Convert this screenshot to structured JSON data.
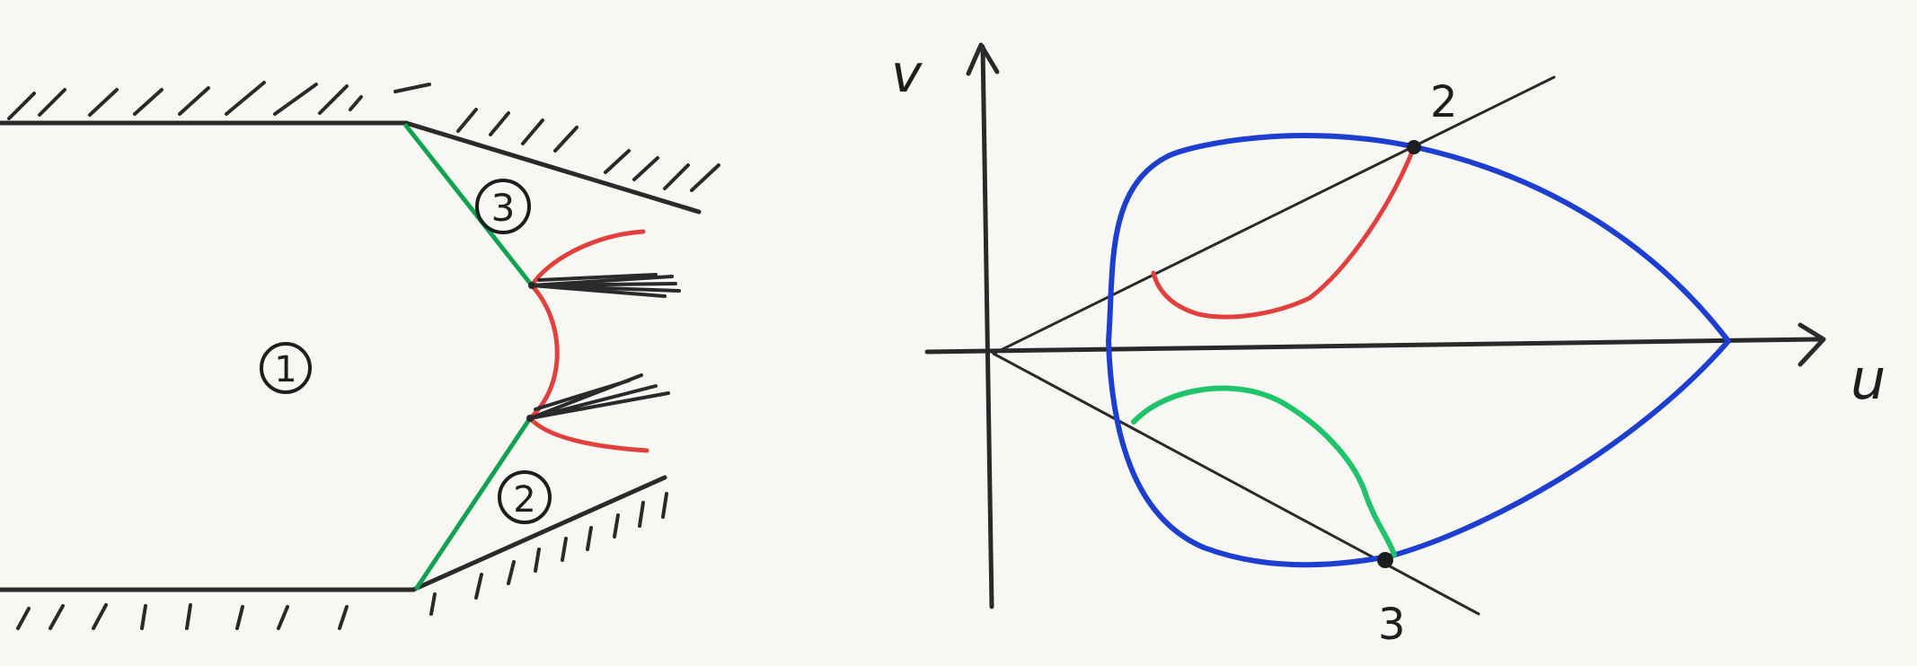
{
  "colors": {
    "ink": "#2a2a2a",
    "green": "#12a352",
    "red": "#e2403d",
    "blue": "#1d3fd0",
    "bright_green": "#1fc46a",
    "background": "#f7f7f3"
  },
  "left_diagram": {
    "region_labels": {
      "region_1": "1",
      "region_2": "2",
      "region_3": "3"
    }
  },
  "right_diagram": {
    "axis_labels": {
      "vertical": "v",
      "horizontal": "u"
    },
    "point_labels": {
      "point_2": "2",
      "point_3": "3"
    }
  }
}
